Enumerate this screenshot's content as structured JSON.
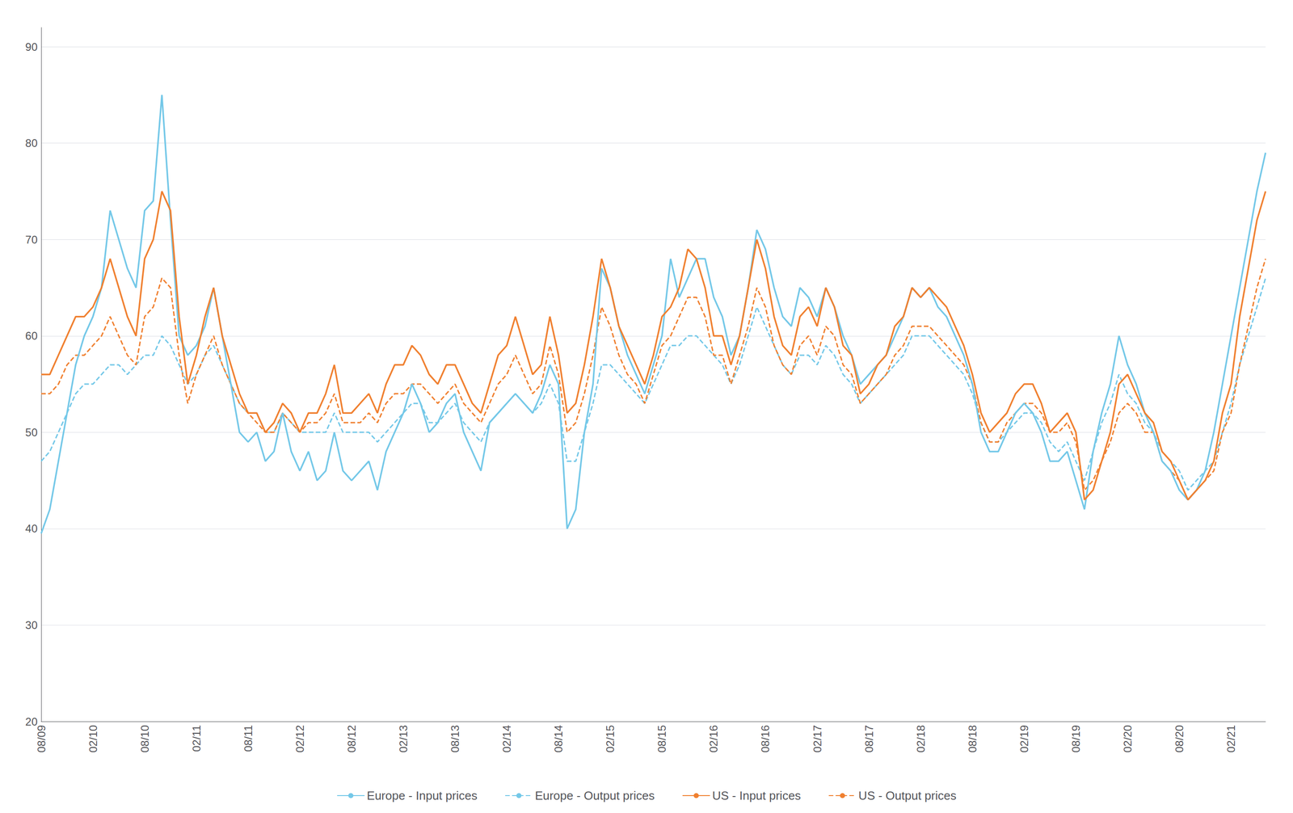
{
  "chart_data": {
    "type": "line",
    "categories": [
      "08/09",
      null,
      null,
      null,
      null,
      null,
      "02/10",
      null,
      null,
      null,
      null,
      null,
      "08/10",
      null,
      null,
      null,
      null,
      null,
      "02/11",
      null,
      null,
      null,
      null,
      null,
      "08/11",
      null,
      null,
      null,
      null,
      null,
      "02/12",
      null,
      null,
      null,
      null,
      null,
      "08/12",
      null,
      null,
      null,
      null,
      null,
      "02/13",
      null,
      null,
      null,
      null,
      null,
      "08/13",
      null,
      null,
      null,
      null,
      null,
      "02/14",
      null,
      null,
      null,
      null,
      null,
      "08/14",
      null,
      null,
      null,
      null,
      null,
      "02/15",
      null,
      null,
      null,
      null,
      null,
      "08/15",
      null,
      null,
      null,
      null,
      null,
      "02/16",
      null,
      null,
      null,
      null,
      null,
      "08/16",
      null,
      null,
      null,
      null,
      null,
      "02/17",
      null,
      null,
      null,
      null,
      null,
      "08/17",
      null,
      null,
      null,
      null,
      null,
      "02/18",
      null,
      null,
      null,
      null,
      null,
      "08/18",
      null,
      null,
      null,
      null,
      null,
      "02/19",
      null,
      null,
      null,
      null,
      null,
      "08/19",
      null,
      null,
      null,
      null,
      null,
      "02/20",
      null,
      null,
      null,
      null,
      null,
      "08/20",
      null,
      null,
      null,
      null,
      null,
      "02/21",
      null,
      null,
      null,
      null
    ],
    "series": [
      {
        "name": "Europe - Input prices",
        "color": "#74C8E8",
        "line_style": "solid",
        "values": [
          39.5,
          42,
          47,
          52,
          57,
          60,
          62,
          65,
          73,
          70,
          67,
          65,
          73,
          74,
          85,
          72,
          60,
          58,
          59,
          61,
          65,
          60,
          55,
          50,
          49,
          50,
          47,
          48,
          52,
          48,
          46,
          48,
          45,
          46,
          50,
          46,
          45,
          46,
          47,
          44,
          48,
          50,
          52,
          55,
          53,
          50,
          51,
          53,
          54,
          50,
          48,
          46,
          51,
          52,
          53,
          54,
          53,
          52,
          54,
          57,
          55,
          40,
          42,
          50,
          55,
          67,
          65,
          61,
          58,
          56,
          54,
          57,
          60,
          68,
          64,
          66,
          68,
          68,
          64,
          62,
          58,
          60,
          65,
          71,
          69,
          65,
          62,
          61,
          65,
          64,
          62,
          65,
          63,
          60,
          58,
          55,
          56,
          57,
          58,
          60,
          62,
          65,
          64,
          65,
          63,
          62,
          60,
          58,
          55,
          50,
          48,
          48,
          50,
          52,
          53,
          52,
          50,
          47,
          47,
          48,
          45,
          42,
          48,
          52,
          55,
          60,
          57,
          55,
          52,
          50,
          47,
          46,
          44,
          43,
          44,
          46,
          50,
          55,
          60,
          65,
          70,
          75,
          79
        ]
      },
      {
        "name": "Europe - Output prices",
        "color": "#74C8E8",
        "line_style": "dashed",
        "values": [
          47,
          48,
          50,
          52,
          54,
          55,
          55,
          56,
          57,
          57,
          56,
          57,
          58,
          58,
          60,
          59,
          57,
          55,
          56,
          58,
          59,
          57,
          55,
          53,
          52,
          52,
          50,
          50,
          52,
          51,
          50,
          50,
          50,
          50,
          52,
          50,
          50,
          50,
          50,
          49,
          50,
          51,
          52,
          53,
          53,
          51,
          51,
          52,
          53,
          51,
          50,
          49,
          51,
          52,
          53,
          54,
          53,
          52,
          53,
          55,
          53,
          47,
          47,
          50,
          53,
          57,
          57,
          56,
          55,
          54,
          53,
          55,
          57,
          59,
          59,
          60,
          60,
          59,
          58,
          57,
          55,
          57,
          60,
          63,
          61,
          59,
          57,
          56,
          58,
          58,
          57,
          59,
          58,
          56,
          55,
          53,
          54,
          55,
          56,
          57,
          58,
          60,
          60,
          60,
          59,
          58,
          57,
          56,
          54,
          51,
          49,
          49,
          50,
          51,
          52,
          52,
          51,
          49,
          48,
          49,
          47,
          45,
          48,
          51,
          53,
          56,
          54,
          53,
          51,
          50,
          48,
          47,
          46,
          44,
          45,
          46,
          47,
          50,
          53,
          57,
          60,
          63,
          66
        ]
      },
      {
        "name": "US - Input prices",
        "color": "#F08030",
        "line_style": "solid",
        "values": [
          56,
          56,
          58,
          60,
          62,
          62,
          63,
          65,
          68,
          65,
          62,
          60,
          68,
          70,
          75,
          73,
          62,
          55,
          58,
          62,
          65,
          60,
          57,
          54,
          52,
          52,
          50,
          51,
          53,
          52,
          50,
          52,
          52,
          54,
          57,
          52,
          52,
          53,
          54,
          52,
          55,
          57,
          57,
          59,
          58,
          56,
          55,
          57,
          57,
          55,
          53,
          52,
          55,
          58,
          59,
          62,
          59,
          56,
          57,
          62,
          58,
          52,
          53,
          57,
          62,
          68,
          65,
          61,
          59,
          57,
          55,
          58,
          62,
          63,
          65,
          69,
          68,
          65,
          60,
          60,
          57,
          60,
          65,
          70,
          67,
          62,
          59,
          58,
          62,
          63,
          61,
          65,
          63,
          59,
          58,
          54,
          55,
          57,
          58,
          61,
          62,
          65,
          64,
          65,
          64,
          63,
          61,
          59,
          56,
          52,
          50,
          51,
          52,
          54,
          55,
          55,
          53,
          50,
          51,
          52,
          50,
          43,
          44,
          47,
          50,
          55,
          56,
          54,
          52,
          51,
          48,
          47,
          45,
          43,
          44,
          45,
          47,
          52,
          55,
          62,
          67,
          72,
          75
        ]
      },
      {
        "name": "US - Output prices",
        "color": "#F08030",
        "line_style": "dashed",
        "values": [
          54,
          54,
          55,
          57,
          58,
          58,
          59,
          60,
          62,
          60,
          58,
          57,
          62,
          63,
          66,
          65,
          58,
          53,
          56,
          58,
          60,
          57,
          55,
          53,
          52,
          51,
          50,
          50,
          52,
          51,
          50,
          51,
          51,
          52,
          54,
          51,
          51,
          51,
          52,
          51,
          53,
          54,
          54,
          55,
          55,
          54,
          53,
          54,
          55,
          53,
          52,
          51,
          53,
          55,
          56,
          58,
          56,
          54,
          55,
          59,
          56,
          50,
          51,
          54,
          58,
          63,
          61,
          58,
          56,
          55,
          53,
          56,
          59,
          60,
          62,
          64,
          64,
          62,
          58,
          58,
          55,
          58,
          61,
          65,
          63,
          59,
          57,
          56,
          59,
          60,
          58,
          61,
          60,
          57,
          56,
          53,
          54,
          55,
          56,
          58,
          59,
          61,
          61,
          61,
          60,
          59,
          58,
          57,
          55,
          51,
          49,
          49,
          51,
          52,
          53,
          53,
          52,
          50,
          50,
          51,
          49,
          44,
          45,
          47,
          49,
          52,
          53,
          52,
          50,
          50,
          47,
          46,
          45,
          43,
          44,
          45,
          46,
          50,
          52,
          57,
          61,
          65,
          68
        ]
      }
    ],
    "ylim": [
      20,
      92
    ],
    "yticks": [
      20,
      30,
      40,
      50,
      60,
      70,
      80,
      90
    ],
    "grid": true,
    "legend": "bottom"
  }
}
